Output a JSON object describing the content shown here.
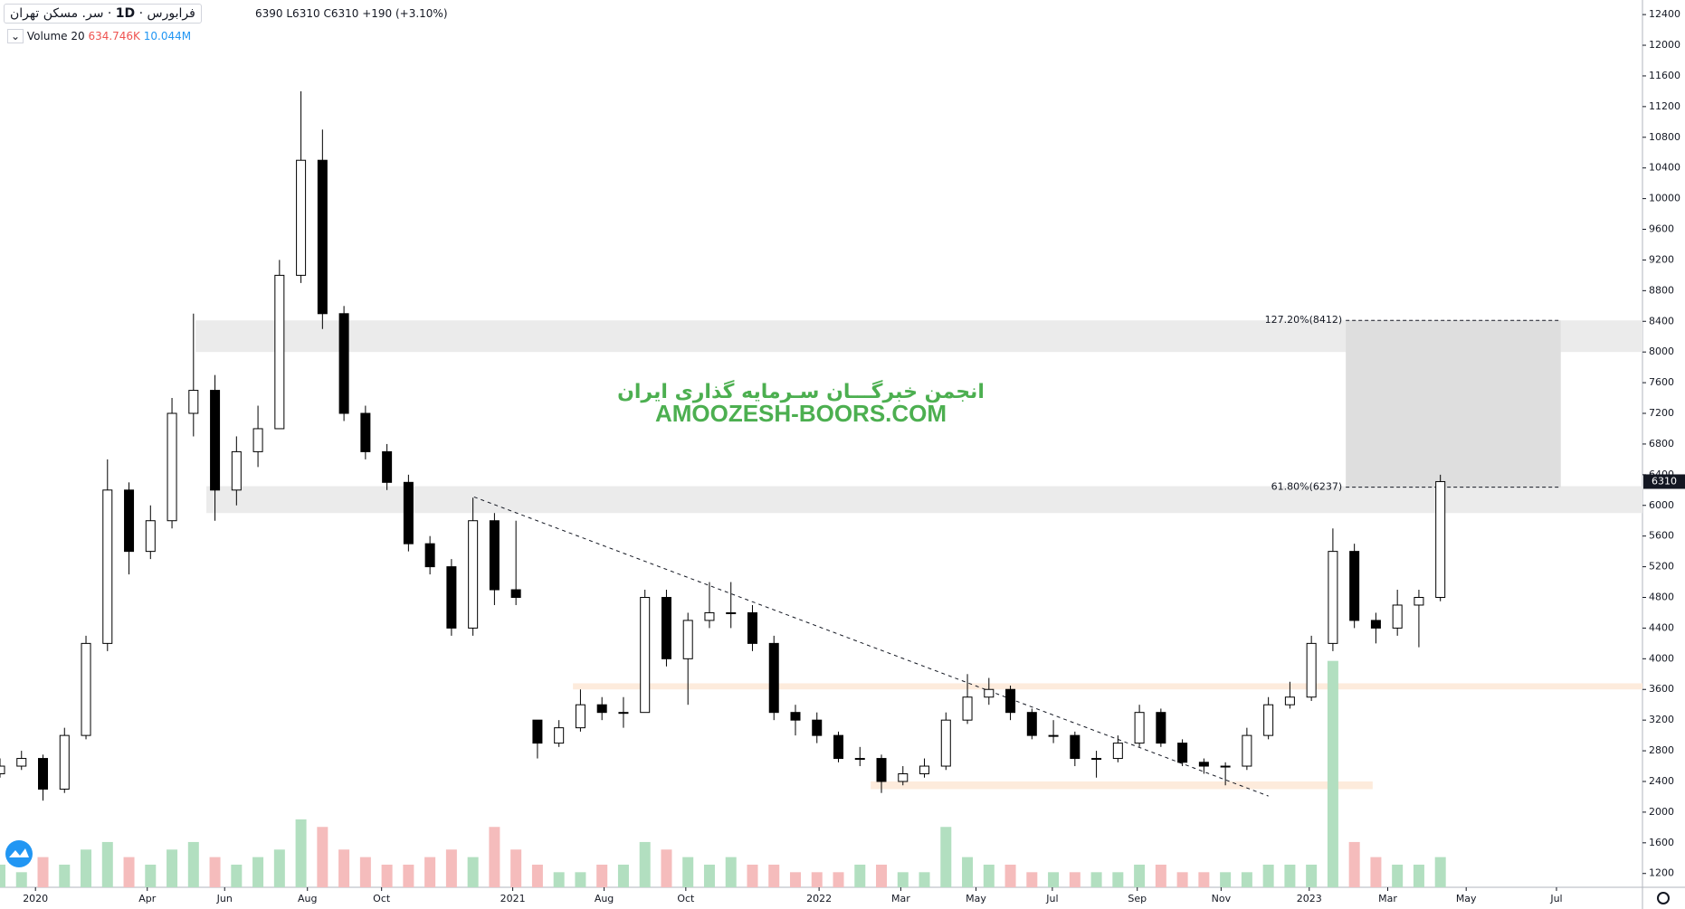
{
  "header": {
    "symbol": "سر. مسکن تهران",
    "interval": "1D",
    "exchange": "فرابورس",
    "high": "6390",
    "low": "L6310",
    "close": "C6310",
    "change": "+190 (+3.10%)"
  },
  "volume_legend": {
    "name": "Volume 20",
    "value1": "634.746K",
    "value2": "10.044M"
  },
  "watermark": {
    "line1": "انجمن خبرگـــان سـرمایه گذاری ایران",
    "line2": "AMOOZESH-BOORS.COM"
  },
  "chart_data": {
    "type": "candlestick",
    "up_color": "#ffffff",
    "down_color": "#000000",
    "volume_up_color": "#b2dfc0",
    "volume_down_color": "#f5bcbc",
    "x": [
      0,
      2,
      4,
      6,
      8,
      10,
      12,
      14,
      16,
      18,
      20,
      22,
      24,
      26,
      28,
      30,
      32,
      34,
      36,
      38,
      40,
      42,
      44,
      46,
      48,
      50,
      52,
      54,
      56,
      58,
      60,
      62,
      64,
      66,
      68,
      70,
      72,
      74,
      76,
      78,
      80,
      82,
      84,
      86,
      88,
      90,
      92,
      94,
      96,
      98,
      100,
      102,
      104,
      106,
      108,
      110,
      112,
      114,
      116,
      118,
      120,
      122,
      124,
      126,
      128,
      130,
      132,
      134
    ],
    "open": [
      2500,
      2600,
      2700,
      2300,
      3000,
      4200,
      6200,
      5400,
      5800,
      7200,
      7500,
      6200,
      6700,
      7000,
      9000,
      10500,
      8500,
      7200,
      6700,
      6300,
      5500,
      5200,
      4400,
      5800,
      4900,
      3200,
      2900,
      3100,
      3400,
      3300,
      3300,
      4800,
      4000,
      4500,
      4600,
      4600,
      4200,
      3300,
      3200,
      3000,
      2700,
      2700,
      2400,
      2500,
      2600,
      3200,
      3500,
      3600,
      3300,
      3000,
      3000,
      2700,
      2700,
      2900,
      3300,
      2900,
      2650,
      2600,
      2600,
      3000,
      3400,
      3500,
      4200,
      5400,
      4500,
      4400,
      4700,
      4800
    ],
    "high": [
      2700,
      2800,
      2750,
      3100,
      4300,
      6600,
      6300,
      6000,
      7400,
      8500,
      7700,
      6900,
      7300,
      9200,
      11400,
      10900,
      8600,
      7300,
      6800,
      6400,
      5600,
      5300,
      6100,
      5900,
      5800,
      3200,
      3200,
      3600,
      3500,
      3500,
      4900,
      4900,
      4600,
      5000,
      5000,
      4700,
      4300,
      3400,
      3300,
      3050,
      2850,
      2750,
      2600,
      2700,
      3300,
      3800,
      3750,
      3650,
      3350,
      3200,
      3050,
      2800,
      3000,
      3400,
      3350,
      2950,
      2700,
      2650,
      3100,
      3500,
      3700,
      4300,
      5700,
      5500,
      4600,
      4900,
      4900,
      6400
    ],
    "low": [
      2450,
      2550,
      2150,
      2250,
      2950,
      4100,
      5100,
      5300,
      5700,
      6900,
      5800,
      6000,
      6500,
      7000,
      8900,
      8300,
      7100,
      6600,
      6200,
      5400,
      5100,
      4300,
      4300,
      4700,
      4700,
      2700,
      2850,
      3050,
      3200,
      3100,
      3300,
      3900,
      3400,
      4400,
      4400,
      4100,
      3200,
      3000,
      2900,
      2650,
      2600,
      2250,
      2350,
      2450,
      2550,
      3150,
      3400,
      3200,
      2950,
      2900,
      2600,
      2450,
      2650,
      2850,
      2850,
      2600,
      2500,
      2350,
      2550,
      2950,
      3350,
      3450,
      4100,
      4400,
      4200,
      4300,
      4150,
      4750
    ],
    "close": [
      2600,
      2700,
      2300,
      3000,
      4200,
      6200,
      5400,
      5800,
      7200,
      7500,
      6200,
      6700,
      7000,
      9000,
      10500,
      8500,
      7200,
      6700,
      6300,
      5500,
      5200,
      4400,
      5800,
      4900,
      4800,
      2900,
      3100,
      3400,
      3300,
      3300,
      4800,
      4000,
      4500,
      4600,
      4600,
      4200,
      3300,
      3200,
      3000,
      2700,
      2700,
      2400,
      2500,
      2600,
      3200,
      3500,
      3600,
      3300,
      3000,
      3000,
      2700,
      2700,
      2900,
      3300,
      2900,
      2650,
      2600,
      2600,
      3000,
      3400,
      3500,
      4200,
      5400,
      4500,
      4400,
      4700,
      4800,
      6310
    ],
    "volume": [
      3,
      2,
      4,
      3,
      5,
      6,
      4,
      3,
      5,
      6,
      4,
      3,
      4,
      5,
      9,
      8,
      5,
      4,
      3,
      3,
      4,
      5,
      4,
      8,
      5,
      3,
      2,
      2,
      3,
      3,
      6,
      5,
      4,
      3,
      4,
      3,
      3,
      2,
      2,
      2,
      3,
      3,
      2,
      2,
      8,
      4,
      3,
      3,
      2,
      2,
      2,
      2,
      2,
      3,
      3,
      2,
      2,
      2,
      2,
      3,
      3,
      3,
      30,
      6,
      4,
      3,
      3,
      4
    ],
    "volume_lim": [
      0,
      32
    ],
    "xlim": [
      0,
      152.8
    ],
    "ylim": [
      1020,
      12590
    ],
    "xticks": [
      {
        "value": 3.3,
        "label": "2020"
      },
      {
        "value": 13.7,
        "label": "Apr"
      },
      {
        "value": 20.9,
        "label": "Jun"
      },
      {
        "value": 28.6,
        "label": "Aug"
      },
      {
        "value": 35.5,
        "label": "Oct"
      },
      {
        "value": 47.7,
        "label": "2021"
      },
      {
        "value": 56.2,
        "label": "Aug"
      },
      {
        "value": 63.8,
        "label": "Oct"
      },
      {
        "value": 76.2,
        "label": "2022"
      },
      {
        "value": 83.8,
        "label": "Mar"
      },
      {
        "value": 90.8,
        "label": "May"
      },
      {
        "value": 97.9,
        "label": "Jul"
      },
      {
        "value": 105.8,
        "label": "Sep"
      },
      {
        "value": 113.6,
        "label": "Nov"
      },
      {
        "value": 121.8,
        "label": "2023"
      },
      {
        "value": 129.1,
        "label": "Mar"
      },
      {
        "value": 136.4,
        "label": "May"
      },
      {
        "value": 144.8,
        "label": "Jul"
      }
    ],
    "yticks": [
      1200,
      1600,
      2000,
      2400,
      2800,
      3200,
      3600,
      4000,
      4400,
      4800,
      5200,
      5600,
      6000,
      6400,
      6800,
      7200,
      7600,
      8000,
      8400,
      8800,
      9200,
      9600,
      10000,
      10400,
      10800,
      11200,
      11600,
      12000,
      12400
    ],
    "last_price": 6310,
    "zones": [
      {
        "x": [
          18.2,
          152.8
        ],
        "y": [
          8000,
          8412
        ],
        "color": "#ebebeb"
      },
      {
        "x": [
          19.2,
          152.8
        ],
        "y": [
          5900,
          6250
        ],
        "color": "#ebebeb"
      },
      {
        "x": [
          53.3,
          152.8
        ],
        "y": [
          3600,
          3680
        ],
        "color": "#fdebdc"
      },
      {
        "x": [
          81.0,
          127.7
        ],
        "y": [
          2300,
          2400
        ],
        "color": "#fdebdc"
      },
      {
        "x": [
          125.2,
          145.2
        ],
        "y": [
          6237,
          8412
        ],
        "color": "#dedede"
      }
    ],
    "trendline": {
      "x": [
        44.1,
        118.0
      ],
      "y": [
        6110,
        2210
      ]
    },
    "fib_levels": [
      {
        "value": 8412,
        "label": "127.20%(8412)"
      },
      {
        "value": 6237,
        "label": "61.80%(6237)"
      }
    ],
    "fib_x": [
      125.2,
      145.2
    ]
  }
}
